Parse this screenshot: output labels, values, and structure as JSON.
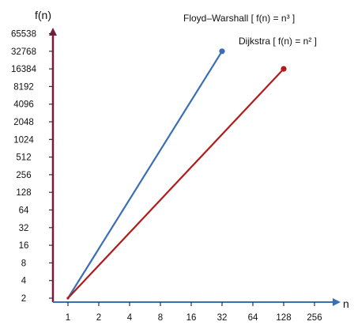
{
  "chart_data": {
    "type": "line",
    "xlabel": "n",
    "ylabel": "f(n)",
    "xscale": "log2",
    "yscale": "log2",
    "xlim": [
      1,
      256
    ],
    "ylim": [
      2,
      65538
    ],
    "x_ticks": [
      "1",
      "2",
      "4",
      "8",
      "16",
      "32",
      "64",
      "128",
      "256"
    ],
    "y_ticks": [
      "2",
      "4",
      "8",
      "16",
      "32",
      "64",
      "128",
      "256",
      "512",
      "1024",
      "2048",
      "4096",
      "8192",
      "16384",
      "32768",
      "65538"
    ],
    "grid": false,
    "legend": "none",
    "series": [
      {
        "name": "Floyd–Warshall [ f(n) = n³ ]",
        "color": "#3a6fb5",
        "x": [
          1,
          32
        ],
        "y": [
          2,
          32768
        ]
      },
      {
        "name": "Dijkstra [ f(n) = n² ]",
        "color": "#b01c1c",
        "x": [
          1,
          128
        ],
        "y": [
          2,
          16384
        ]
      }
    ],
    "axis_color": "#7b1a3c"
  }
}
